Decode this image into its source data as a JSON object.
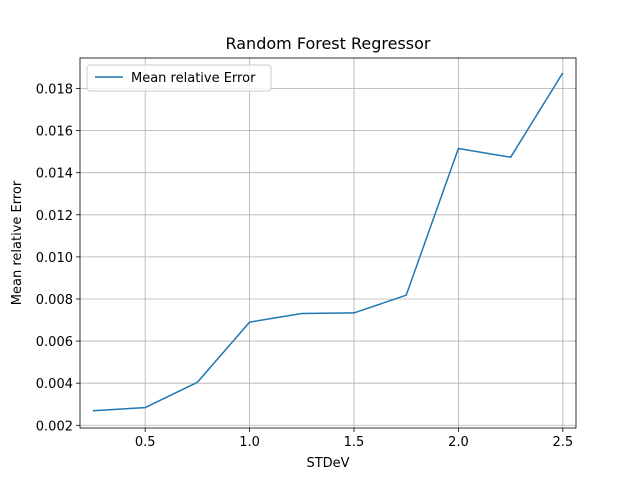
{
  "chart_data": {
    "type": "line",
    "title": "Random Forest Regressor",
    "xlabel": "STDeV",
    "ylabel": "Mean relative Error",
    "xlim": [
      0.188,
      2.563
    ],
    "ylim": [
      0.00187,
      0.01945
    ],
    "xticks": [
      0.5,
      1.0,
      1.5,
      2.0,
      2.5
    ],
    "xtick_labels": [
      "0.5",
      "1.0",
      "1.5",
      "2.0",
      "2.5"
    ],
    "yticks": [
      0.002,
      0.004,
      0.006,
      0.008,
      0.01,
      0.012,
      0.014,
      0.016,
      0.018
    ],
    "ytick_labels": [
      "0.002",
      "0.004",
      "0.006",
      "0.008",
      "0.010",
      "0.012",
      "0.014",
      "0.016",
      "0.018"
    ],
    "grid": true,
    "legend_position": "top-left",
    "series": [
      {
        "name": "Mean relative Error",
        "color": "#1f77b4",
        "x": [
          0.25,
          0.5,
          0.75,
          1.0,
          1.25,
          1.5,
          1.75,
          2.0,
          2.25,
          2.5
        ],
        "y": [
          0.00269,
          0.00284,
          0.00404,
          0.0069,
          0.00731,
          0.00734,
          0.00818,
          0.01515,
          0.01473,
          0.01874
        ]
      }
    ]
  }
}
